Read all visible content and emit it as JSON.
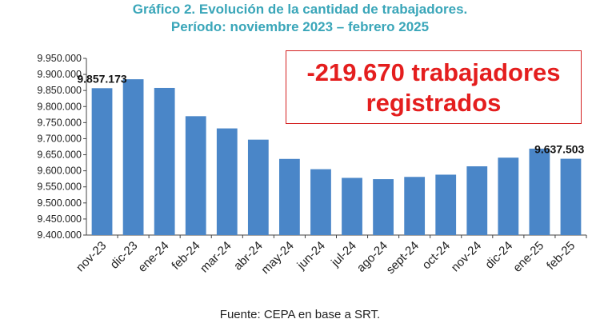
{
  "header": {
    "title": "Gráfico 2. Evolución de la cantidad de trabajadores.",
    "subtitle": "Período: noviembre 2023 – febrero 2025"
  },
  "callout": {
    "line1": "-219.670 trabajadores",
    "line2": "registrados"
  },
  "source": "Fuente: CEPA en base a SRT.",
  "chart_data": {
    "type": "bar",
    "categories": [
      "nov-23",
      "dic-23",
      "ene-24",
      "feb-24",
      "mar-24",
      "abr-24",
      "may-24",
      "jun-24",
      "jul-24",
      "ago-24",
      "sept-24",
      "oct-24",
      "nov-24",
      "dic-24",
      "ene-25",
      "feb-25"
    ],
    "values": [
      9857173,
      9885000,
      9858000,
      9770000,
      9732000,
      9697000,
      9637000,
      9605000,
      9578000,
      9574000,
      9581000,
      9588000,
      9614000,
      9641000,
      9669000,
      9637503
    ],
    "data_labels": [
      {
        "category": "nov-23",
        "text": "9.857.173"
      },
      {
        "category": "feb-25",
        "text": "9.637.503"
      }
    ],
    "y_ticks": [
      "9.400.000",
      "9.450.000",
      "9.500.000",
      "9.550.000",
      "9.600.000",
      "9.650.000",
      "9.700.000",
      "9.750.000",
      "9.800.000",
      "9.850.000",
      "9.900.000",
      "9.950.000"
    ],
    "ylim": [
      9400000,
      9950000
    ],
    "grid": false,
    "bar_color": "#4a86c8"
  }
}
